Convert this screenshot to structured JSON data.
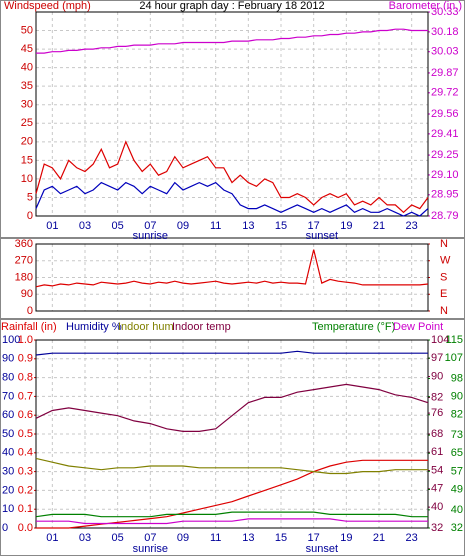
{
  "chart_data": [
    {
      "type": "line",
      "title": "24 hour graph day : February 18 2012",
      "y_label": "Windspeed (mph)",
      "y2_label": "Barometer (in.)",
      "x": [
        0,
        0.5,
        1,
        1.5,
        2,
        2.5,
        3,
        3.5,
        4,
        4.5,
        5,
        5.5,
        6,
        6.5,
        7,
        7.5,
        8,
        8.5,
        9,
        9.5,
        10,
        10.5,
        11,
        11.5,
        12,
        12.5,
        13,
        13.5,
        14,
        14.5,
        15,
        15.5,
        16,
        16.5,
        17,
        17.5,
        18,
        18.5,
        19,
        19.5,
        20,
        20.5,
        21,
        21.5,
        22,
        22.5,
        23,
        23.5,
        24
      ],
      "xlim": [
        0,
        24
      ],
      "xticks": [
        {
          "value": 1,
          "label": "01"
        },
        {
          "value": 3,
          "label": "03"
        },
        {
          "value": 5,
          "label": "05"
        },
        {
          "value": 7,
          "label": "07"
        },
        {
          "value": 9,
          "label": "09"
        },
        {
          "value": 11,
          "label": "11"
        },
        {
          "value": 13,
          "label": "13"
        },
        {
          "value": 15,
          "label": "15"
        },
        {
          "value": 17,
          "label": "17"
        },
        {
          "value": 19,
          "label": "19"
        },
        {
          "value": 21,
          "label": "21"
        },
        {
          "value": 23,
          "label": "23"
        }
      ],
      "annotations": [
        {
          "text": "sunrise",
          "x": 7
        },
        {
          "text": "sunset",
          "x": 17.5
        }
      ],
      "ylim": [
        0,
        55
      ],
      "yticks": [
        0,
        5,
        10,
        15,
        20,
        25,
        30,
        35,
        40,
        45,
        50
      ],
      "y2lim": [
        28.79,
        30.33
      ],
      "y2ticks": [
        28.79,
        28.95,
        {
          "value": 29.1,
          "label": "29.10"
        },
        29.25,
        29.41,
        29.56,
        29.72,
        29.87,
        30.03,
        30.18,
        30.33
      ],
      "grid": true,
      "series": [
        {
          "color": "#dd0000",
          "values": [
            6,
            14,
            13,
            10,
            15,
            13,
            12,
            14,
            18,
            13,
            14,
            20,
            15,
            12,
            14,
            11,
            12,
            16,
            13,
            14,
            15,
            16,
            13,
            13,
            9,
            11,
            9,
            8,
            10,
            9,
            5,
            5,
            6,
            5,
            3,
            5,
            6,
            5,
            6,
            3,
            4,
            3,
            5,
            3,
            3,
            1,
            3,
            2,
            5
          ]
        },
        {
          "color": "#0000bb",
          "values": [
            2,
            7,
            8,
            6,
            7,
            8,
            6,
            7,
            9,
            8,
            7,
            9,
            8,
            6,
            8,
            7,
            6,
            9,
            7,
            8,
            9,
            8,
            9,
            7,
            6,
            3,
            2,
            2,
            3,
            2,
            1,
            2,
            3,
            2,
            1,
            2,
            1,
            2,
            3,
            1,
            2,
            1,
            1,
            2,
            1,
            0,
            1,
            0,
            2
          ]
        },
        {
          "color": "#cc00cc",
          "axis": "y2",
          "values": [
            30.02,
            30.02,
            30.03,
            30.03,
            30.04,
            30.04,
            30.05,
            30.05,
            30.06,
            30.06,
            30.07,
            30.07,
            30.08,
            30.08,
            30.08,
            30.09,
            30.09,
            30.09,
            30.1,
            30.1,
            30.1,
            30.1,
            30.1,
            30.1,
            30.11,
            30.11,
            30.11,
            30.12,
            30.12,
            30.12,
            30.13,
            30.13,
            30.14,
            30.14,
            30.15,
            30.15,
            30.16,
            30.16,
            30.17,
            30.17,
            30.18,
            30.18,
            30.19,
            30.19,
            30.2,
            30.2,
            30.19,
            30.19,
            30.19
          ]
        }
      ]
    },
    {
      "type": "line",
      "x": [
        0,
        0.5,
        1,
        1.5,
        2,
        2.5,
        3,
        3.5,
        4,
        4.5,
        5,
        5.5,
        6,
        6.5,
        7,
        7.5,
        8,
        8.5,
        9,
        9.5,
        10,
        10.5,
        11,
        11.5,
        12,
        12.5,
        13,
        13.5,
        14,
        14.5,
        15,
        15.5,
        16,
        16.5,
        17,
        17.5,
        18,
        18.5,
        19,
        19.5,
        20,
        20.5,
        21,
        21.5,
        22,
        22.5,
        23,
        23.5,
        24
      ],
      "xlim": [
        0,
        24
      ],
      "xticks": [
        1,
        3,
        5,
        7,
        9,
        11,
        13,
        15,
        17,
        19,
        21,
        23
      ],
      "ylim": [
        0,
        360
      ],
      "yticks": [
        0,
        90,
        180,
        270,
        360
      ],
      "y2lim": [
        0,
        360
      ],
      "y2ticks": [
        {
          "value": 0,
          "label": "N"
        },
        {
          "value": 90,
          "label": "E"
        },
        {
          "value": 180,
          "label": "S"
        },
        {
          "value": 270,
          "label": "W"
        },
        {
          "value": 360,
          "label": "N"
        }
      ],
      "grid": true,
      "series": [
        {
          "color": "#dd0000",
          "values": [
            130,
            140,
            135,
            145,
            140,
            150,
            145,
            140,
            155,
            150,
            145,
            150,
            160,
            150,
            145,
            155,
            150,
            160,
            150,
            145,
            150,
            155,
            160,
            150,
            145,
            150,
            155,
            150,
            160,
            150,
            155,
            150,
            150,
            145,
            330,
            150,
            170,
            160,
            155,
            150,
            140,
            140,
            140,
            140,
            140,
            140,
            140,
            140,
            145
          ]
        }
      ]
    },
    {
      "type": "line",
      "x": [
        0,
        1,
        2,
        3,
        4,
        5,
        6,
        7,
        8,
        9,
        10,
        11,
        12,
        13,
        14,
        15,
        16,
        17,
        18,
        19,
        20,
        21,
        22,
        23,
        24
      ],
      "xlim": [
        0,
        24
      ],
      "xticks": [
        {
          "value": 1,
          "label": "01"
        },
        {
          "value": 3,
          "label": "03"
        },
        {
          "value": 5,
          "label": "05"
        },
        {
          "value": 7,
          "label": "07"
        },
        {
          "value": 9,
          "label": "09"
        },
        {
          "value": 11,
          "label": "11"
        },
        {
          "value": 13,
          "label": "13"
        },
        {
          "value": 15,
          "label": "15"
        },
        {
          "value": 17,
          "label": "17"
        },
        {
          "value": 19,
          "label": "19"
        },
        {
          "value": 21,
          "label": "21"
        },
        {
          "value": 23,
          "label": "23"
        }
      ],
      "annotations": [
        {
          "text": "sunrise",
          "x": 7
        },
        {
          "text": "sunset",
          "x": 17.5
        }
      ],
      "ylim": [
        0,
        100
      ],
      "yticks": [
        0,
        10,
        20,
        30,
        40,
        50,
        60,
        70,
        80,
        90,
        100
      ],
      "y3lim": [
        0,
        1
      ],
      "y3ticks": [
        {
          "value": 0,
          "label": "0.0"
        },
        0.1,
        0.2,
        0.3,
        0.4,
        0.5,
        0.6,
        0.7,
        0.8,
        0.9,
        {
          "value": 1,
          "label": "1.0"
        }
      ],
      "y4lim": [
        32,
        104
      ],
      "y4ticks": [
        32,
        40,
        47,
        54,
        61,
        68,
        76,
        82,
        90,
        97,
        104
      ],
      "y2lim": [
        32,
        115
      ],
      "y2ticks": [
        32,
        40,
        49,
        57,
        65,
        73,
        82,
        90,
        98,
        107,
        115
      ],
      "grid": true,
      "series": [
        {
          "name": "Rainfall (in)",
          "color": "#dd0000",
          "axis": "y3",
          "values": [
            0,
            0,
            0,
            0.01,
            0.02,
            0.03,
            0.04,
            0.05,
            0.06,
            0.08,
            0.1,
            0.12,
            0.14,
            0.17,
            0.2,
            0.23,
            0.26,
            0.3,
            0.33,
            0.35,
            0.36,
            0.36,
            0.36,
            0.36,
            0.36
          ]
        },
        {
          "name": "Humidity %",
          "color": "#000099",
          "values": [
            92,
            93,
            93,
            93,
            93,
            93,
            93,
            93,
            93,
            93,
            93,
            93,
            93,
            93,
            93,
            93,
            94,
            93,
            93,
            93,
            93,
            93,
            93,
            93,
            93
          ]
        },
        {
          "name": "Indoor hum",
          "color": "#808000",
          "values": [
            37,
            35,
            33,
            32,
            31,
            32,
            32,
            33,
            33,
            33,
            32,
            32,
            32,
            32,
            32,
            32,
            31,
            30,
            29,
            29,
            30,
            30,
            31,
            31,
            31
          ]
        },
        {
          "name": "Indoor temp",
          "color": "#800040",
          "axis": "y4",
          "values": [
            74,
            77,
            78,
            77,
            76,
            75,
            73,
            72,
            70,
            69,
            69,
            70,
            75,
            80,
            82,
            82,
            84,
            85,
            86,
            87,
            86,
            85,
            83,
            82,
            80
          ]
        },
        {
          "name": "Temperature (°F)",
          "color": "#008000",
          "axis": "y2",
          "values": [
            37,
            38,
            38,
            38,
            37,
            37,
            37,
            37,
            38,
            38,
            38,
            38,
            39,
            39,
            39,
            39,
            39,
            39,
            38,
            38,
            38,
            38,
            38,
            37,
            37
          ]
        },
        {
          "name": "Dew Point",
          "color": "#cc00cc",
          "axis": "y2",
          "values": [
            35,
            35,
            35,
            34,
            34,
            34,
            34,
            34,
            34,
            35,
            35,
            35,
            35,
            36,
            36,
            36,
            36,
            36,
            36,
            35,
            35,
            35,
            35,
            35,
            35
          ]
        }
      ]
    }
  ]
}
